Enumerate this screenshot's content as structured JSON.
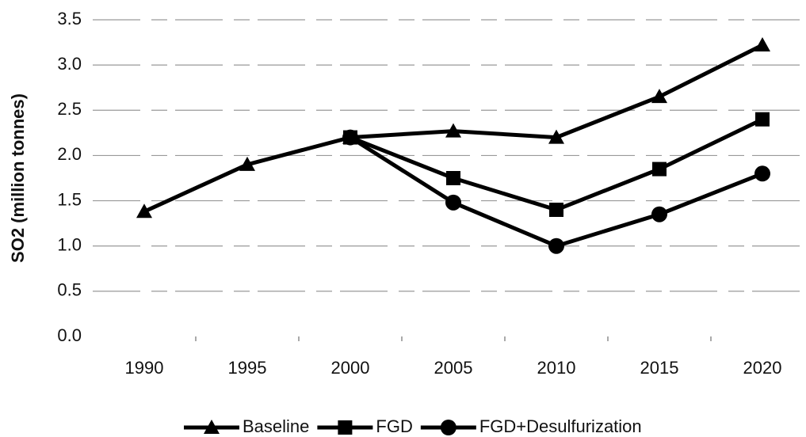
{
  "chart_data": {
    "type": "line",
    "y_label": "SO2 (million tonnes)",
    "categories": [
      "1990",
      "1995",
      "2000",
      "2005",
      "2010",
      "2015",
      "2020"
    ],
    "series": [
      {
        "name": "Baseline",
        "color": "#000000",
        "marker": "triangle",
        "values": [
          1.38,
          1.9,
          2.2,
          2.27,
          2.2,
          2.65,
          3.22
        ]
      },
      {
        "name": "FGD",
        "color": "#000000",
        "marker": "square",
        "values": [
          null,
          null,
          2.2,
          1.75,
          1.4,
          1.85,
          2.4
        ]
      },
      {
        "name": "FGD+Desulfurization",
        "color": "#000000",
        "marker": "circle",
        "values": [
          null,
          null,
          2.2,
          1.48,
          1.0,
          1.35,
          1.8
        ]
      }
    ],
    "ylim": [
      0,
      3.5
    ],
    "yticks": [
      {
        "value": 0,
        "label": "0.0"
      },
      0.5,
      {
        "value": 1,
        "label": "1.0"
      },
      1.5,
      {
        "value": 2,
        "label": "2.0"
      },
      2.5,
      {
        "value": 3,
        "label": "3.0"
      },
      3.5
    ],
    "grid": true,
    "legend": "bottom"
  }
}
